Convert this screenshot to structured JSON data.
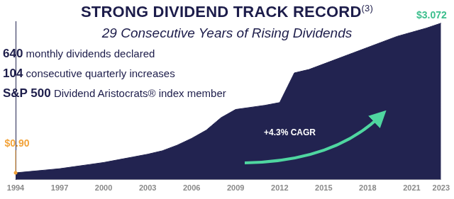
{
  "chart_data": {
    "type": "area",
    "title": "STRONG DIVIDEND TRACK RECORD(3)",
    "subtitle": "29 Consecutive Years of Rising Dividends",
    "annotations": [
      {
        "bold": "640",
        "text": "monthly dividends declared"
      },
      {
        "bold": "104",
        "text": "consecutive quarterly increases"
      },
      {
        "bold": "S&P 500",
        "text": "Dividend Aristocrats® index member"
      },
      {
        "text": "+4.3% CAGR"
      }
    ],
    "categories": [
      "1994",
      null,
      null,
      "1997",
      null,
      null,
      "2000",
      null,
      null,
      "2003",
      null,
      null,
      "2006",
      null,
      null,
      "2009",
      null,
      null,
      "2012",
      null,
      null,
      "2015",
      null,
      null,
      "2018",
      null,
      null,
      "2021",
      null,
      "2023"
    ],
    "values": [
      0.9,
      0.92,
      0.94,
      0.96,
      0.99,
      1.02,
      1.05,
      1.09,
      1.13,
      1.17,
      1.22,
      1.3,
      1.4,
      1.52,
      1.7,
      1.82,
      1.85,
      1.88,
      1.92,
      2.35,
      2.4,
      2.48,
      2.56,
      2.64,
      2.72,
      2.8,
      2.88,
      2.94,
      3.0,
      3.072
    ],
    "value_labels": [
      "$0.90",
      null,
      null,
      null,
      null,
      null,
      null,
      null,
      null,
      null,
      null,
      null,
      null,
      null,
      null,
      null,
      null,
      null,
      null,
      null,
      null,
      null,
      null,
      null,
      null,
      null,
      null,
      null,
      null,
      "$3.072"
    ],
    "data_labels": true,
    "color": "#222350",
    "ylim": [
      0.8,
      3.1
    ],
    "tick_labels": "x",
    "grid": false
  }
}
